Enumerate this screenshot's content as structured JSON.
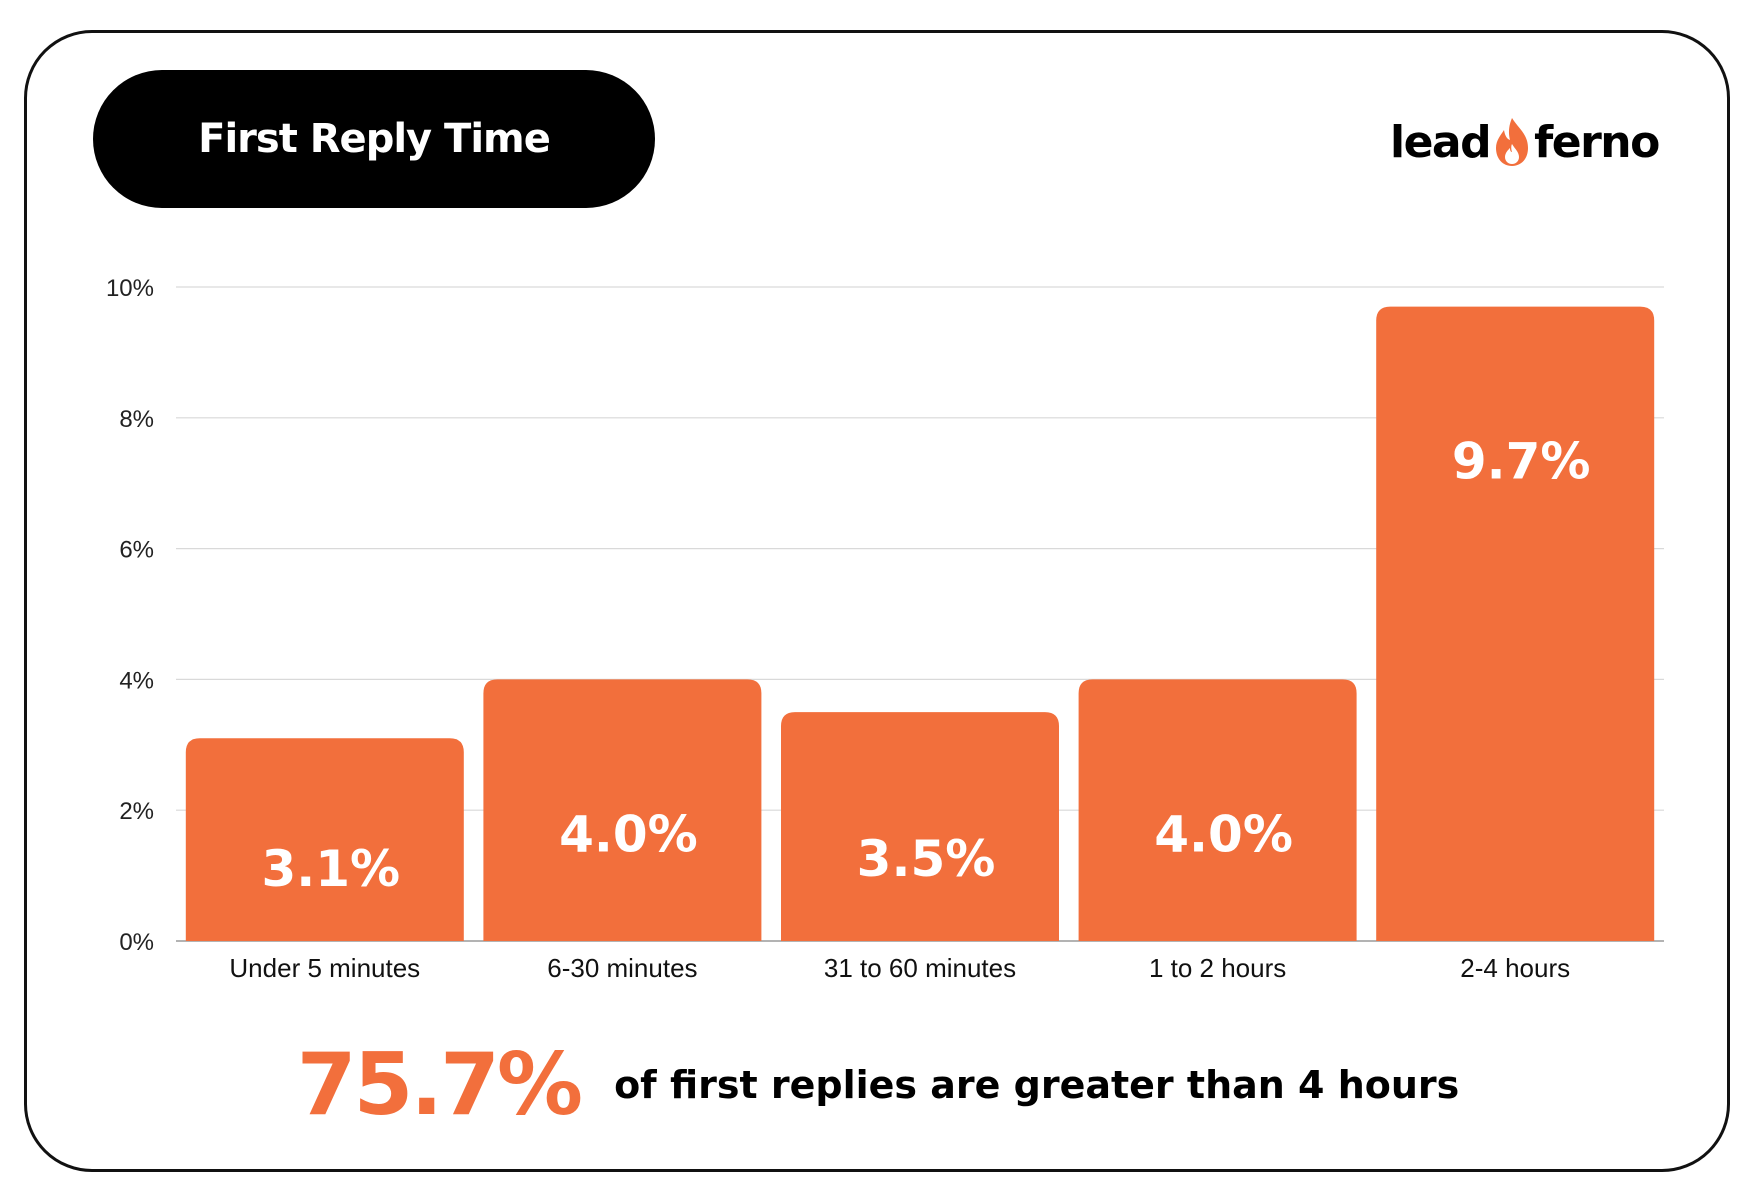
{
  "title": "First Reply Time",
  "logo": {
    "left": "lead",
    "right": "ferno",
    "icon": "flame-icon"
  },
  "colors": {
    "bar": "#F26F3C",
    "accent": "#F26F3C",
    "grid": "#d9d9d9",
    "text": "#000000"
  },
  "chart_data": {
    "type": "bar",
    "categories": [
      "Under 5 minutes",
      "6-30 minutes",
      "31 to 60 minutes",
      "1 to 2 hours",
      "2-4 hours"
    ],
    "values": [
      3.1,
      4.0,
      3.5,
      4.0,
      9.7
    ],
    "data_labels": [
      "3.1%",
      "4.0%",
      "3.5%",
      "4.0%",
      "9.7%"
    ],
    "ylim": [
      0,
      10
    ],
    "yticks": [
      0,
      2,
      4,
      6,
      8,
      10
    ],
    "ytick_labels": [
      "0%",
      "2%",
      "4%",
      "6%",
      "8%",
      "10%"
    ],
    "grid": true,
    "legend": "none"
  },
  "footer": {
    "stat": "75.7%",
    "text": "of first replies are greater than 4 hours"
  }
}
